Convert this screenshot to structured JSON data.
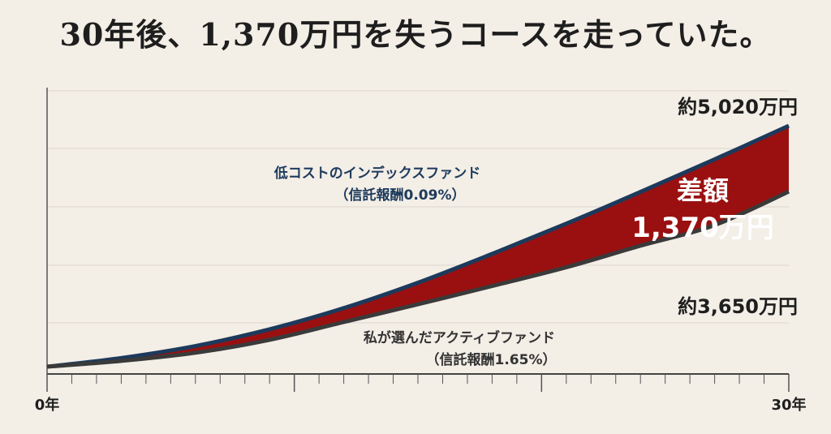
{
  "chart_data": {
    "type": "area",
    "title": "30年後、1,370万円を失うコースを走っていた。",
    "x_start_label": "0年",
    "x_end_label": "30年",
    "xlim": [
      0,
      30
    ],
    "ylim": [
      0,
      6000
    ],
    "grid": true,
    "series": [
      {
        "name": "低コストのインデックスファンド",
        "fee": "（信託報酬0.09%）",
        "end_label": "約5,020万円",
        "color": "#1d3a5c",
        "x": [
          0,
          3,
          6,
          9,
          12,
          15,
          18,
          21,
          24,
          27,
          30
        ],
        "y": [
          0,
          180,
          430,
          780,
          1220,
          1750,
          2350,
          2980,
          3640,
          4320,
          5020
        ]
      },
      {
        "name": "私が選んだアクティブファンド",
        "fee": "（信託報酬1.65%）",
        "end_label": "約3,650万円",
        "color": "#3a3a3a",
        "x": [
          0,
          3,
          6,
          9,
          12,
          15,
          18,
          21,
          24,
          27,
          30
        ],
        "y": [
          0,
          120,
          290,
          560,
          930,
          1300,
          1680,
          2070,
          2520,
          2950,
          3650
        ]
      }
    ],
    "difference": {
      "label": "差額",
      "value": "1,370万円",
      "color": "#9a1010"
    }
  }
}
